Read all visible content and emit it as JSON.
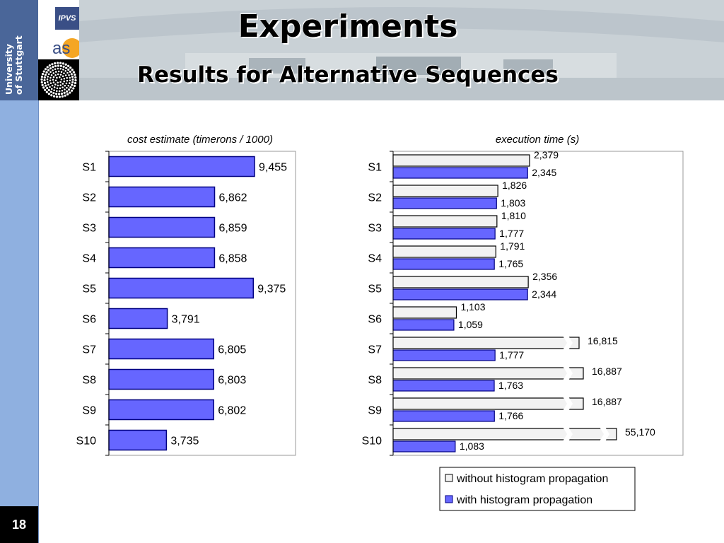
{
  "header": {
    "title": "Experiments",
    "subtitle": "Results for Alternative Sequences",
    "university_line1": "University",
    "university_line2": "of Stuttgart",
    "logo_ipvs": "IPVS",
    "logo_as": "as"
  },
  "page_number": "18",
  "colors": {
    "with_fill": "#6666ff",
    "with_stroke": "#000080",
    "without_fill": "#f2f2f2",
    "sidebar": "#8fb0e0"
  },
  "chart_data": [
    {
      "type": "bar",
      "orientation": "horizontal",
      "title": "cost estimate (timerons / 1000)",
      "categories": [
        "S1",
        "S2",
        "S3",
        "S4",
        "S5",
        "S6",
        "S7",
        "S8",
        "S9",
        "S10"
      ],
      "values": [
        9455,
        6862,
        6859,
        6858,
        9375,
        3791,
        6805,
        6803,
        6802,
        3735
      ],
      "value_labels": [
        "9,455",
        "6,862",
        "6,859",
        "6,858",
        "9,375",
        "3,791",
        "6,805",
        "6,803",
        "6,802",
        "3,735"
      ],
      "xlim": [
        0,
        14500
      ],
      "grid": false
    },
    {
      "type": "bar",
      "orientation": "horizontal",
      "title": "execution time (s)",
      "categories": [
        "S1",
        "S2",
        "S3",
        "S4",
        "S5",
        "S6",
        "S7",
        "S8",
        "S9",
        "S10"
      ],
      "axis_break": true,
      "series": [
        {
          "name": "without histogram propagation",
          "values": [
            2379,
            1826,
            1810,
            1791,
            2356,
            1103,
            16815,
            16887,
            16887,
            55170
          ],
          "value_labels": [
            "2,379",
            "1,826",
            "1,810",
            "1,791",
            "2,356",
            "1,103",
            "16,815",
            "16,887",
            "16,887",
            "55,170"
          ]
        },
        {
          "name": "with histogram propagation",
          "values": [
            2345,
            1803,
            1777,
            1765,
            2344,
            1059,
            1777,
            1763,
            1766,
            1083
          ],
          "value_labels": [
            "2,345",
            "1,803",
            "1,777",
            "1,765",
            "2,344",
            "1,059",
            "1,777",
            "1,763",
            "1,766",
            "1,083"
          ]
        }
      ],
      "xlim": [
        0,
        5250
      ],
      "legend_position": "bottom-right",
      "grid": false
    }
  ]
}
